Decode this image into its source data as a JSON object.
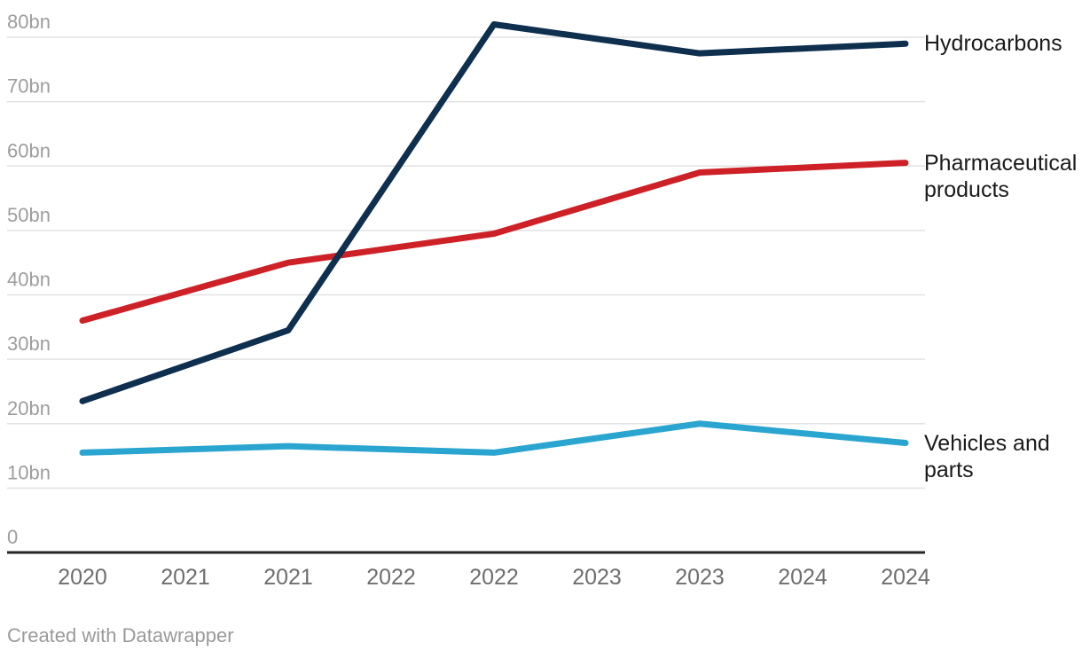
{
  "chart_data": {
    "type": "line",
    "x_years": [
      2020,
      2021,
      2022,
      2023,
      2024
    ],
    "x_tick_labels": [
      "2020",
      "2021",
      "2021",
      "2022",
      "2022",
      "2023",
      "2023",
      "2024",
      "2024"
    ],
    "y_ticks": [
      0,
      10,
      20,
      30,
      40,
      50,
      60,
      70,
      80
    ],
    "y_tick_labels": [
      "0",
      "10bn",
      "20bn",
      "30bn",
      "40bn",
      "50bn",
      "60bn",
      "70bn",
      "80bn"
    ],
    "ylim": [
      0,
      80
    ],
    "grid": true,
    "legend_position": "right-of-line-ends",
    "series": [
      {
        "name": "Hydrocarbons",
        "color": "#0f2f4f",
        "values": [
          23.5,
          34.5,
          82,
          77.5,
          79
        ]
      },
      {
        "name": "Pharmaceutical products",
        "color": "#cd2127",
        "values": [
          36,
          45,
          49.5,
          59,
          60.5
        ]
      },
      {
        "name": "Vehicles and parts",
        "color": "#2aa5d0",
        "values": [
          15.5,
          16.5,
          15.5,
          20,
          17
        ]
      }
    ]
  },
  "attribution": {
    "text": "Created with Datawrapper"
  },
  "colors": {
    "grid": "#e2e2e2",
    "axis": "#262626",
    "y_tick": "#9d9d9d",
    "x_tick": "#6e6e6e",
    "series_label": "#1a1a1a",
    "attribution": "#9a9a9a",
    "background": "#ffffff"
  }
}
